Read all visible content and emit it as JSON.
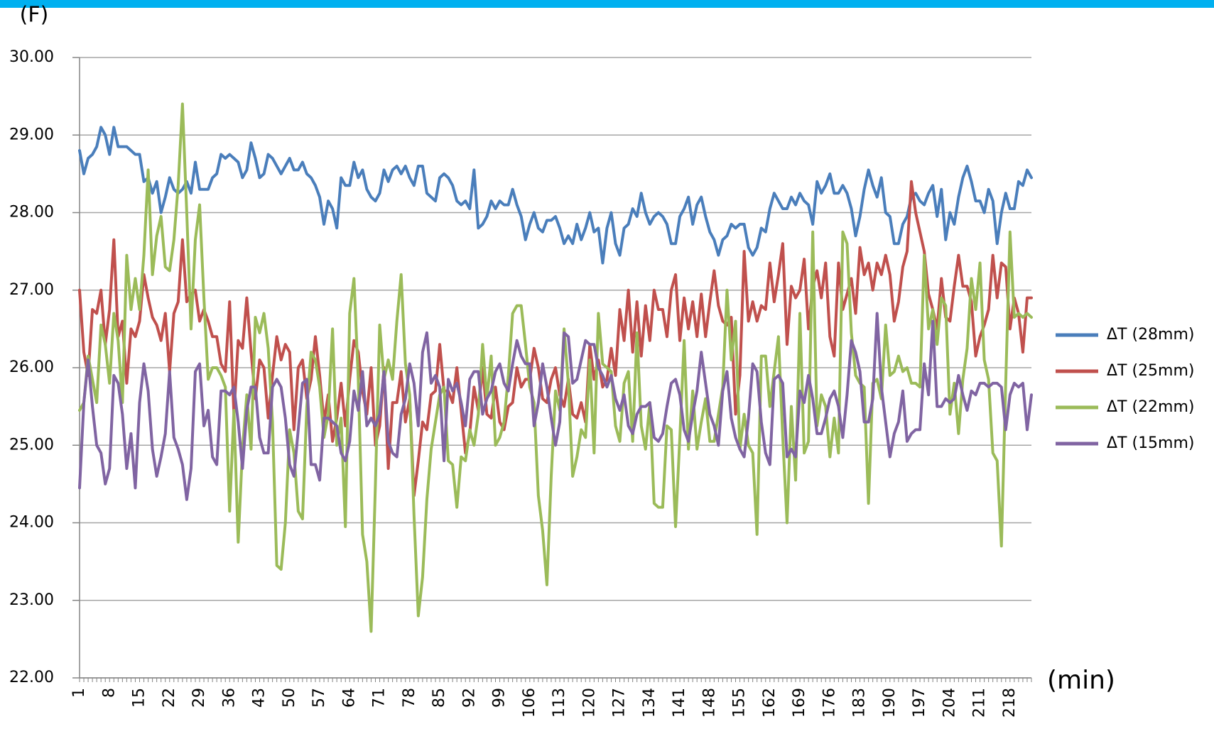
{
  "chart_data": {
    "type": "line",
    "y_unit_label": "(F)",
    "x_unit_label": "(min)",
    "ylim": [
      22,
      30
    ],
    "yticks": [
      {
        "value": 22,
        "label": "22.00"
      },
      {
        "value": 23,
        "label": "23.00"
      },
      {
        "value": 24,
        "label": "24.00"
      },
      {
        "value": 25,
        "label": "25.00"
      },
      {
        "value": 26,
        "label": "26.00"
      },
      {
        "value": 27,
        "label": "27.00"
      },
      {
        "value": 28,
        "label": "28.00"
      },
      {
        "value": 29,
        "label": "29.00"
      },
      {
        "value": 30,
        "label": "30.00"
      }
    ],
    "grid": true,
    "legend": "right",
    "categories": [
      "1",
      null,
      null,
      null,
      null,
      null,
      null,
      "8",
      null,
      null,
      null,
      null,
      null,
      null,
      "15",
      null,
      null,
      null,
      null,
      null,
      null,
      "22",
      null,
      null,
      null,
      null,
      null,
      null,
      "29",
      null,
      null,
      null,
      null,
      null,
      null,
      "36",
      null,
      null,
      null,
      null,
      null,
      null,
      "43",
      null,
      null,
      null,
      null,
      null,
      null,
      "50",
      null,
      null,
      null,
      null,
      null,
      null,
      "57",
      null,
      null,
      null,
      null,
      null,
      null,
      "64",
      null,
      null,
      null,
      null,
      null,
      null,
      "71",
      null,
      null,
      null,
      null,
      null,
      null,
      "78",
      null,
      null,
      null,
      null,
      null,
      null,
      "85",
      null,
      null,
      null,
      null,
      null,
      null,
      "92",
      null,
      null,
      null,
      null,
      null,
      null,
      "99",
      null,
      null,
      null,
      null,
      null,
      null,
      "106",
      null,
      null,
      null,
      null,
      null,
      null,
      "113",
      null,
      null,
      null,
      null,
      null,
      null,
      "120",
      null,
      null,
      null,
      null,
      null,
      null,
      "127",
      null,
      null,
      null,
      null,
      null,
      null,
      "134",
      null,
      null,
      null,
      null,
      null,
      null,
      "141",
      null,
      null,
      null,
      null,
      null,
      null,
      "148",
      null,
      null,
      null,
      null,
      null,
      null,
      "155",
      null,
      null,
      null,
      null,
      null,
      null,
      "162",
      null,
      null,
      null,
      null,
      null,
      null,
      "169",
      null,
      null,
      null,
      null,
      null,
      null,
      "176",
      null,
      null,
      null,
      null,
      null,
      null,
      "183",
      null,
      null,
      null,
      null,
      null,
      null,
      "190",
      null,
      null,
      null,
      null,
      null,
      null,
      "197",
      null,
      null,
      null,
      null,
      null,
      null,
      "204",
      null,
      null,
      null,
      null,
      null,
      null,
      "211",
      null,
      null,
      null,
      null,
      null,
      null,
      "218",
      null,
      null,
      null,
      null,
      null
    ],
    "series": [
      {
        "name": "ΔT (28mm)",
        "color": "#4a7ebb",
        "values": [
          28.8,
          28.5,
          28.7,
          28.75,
          28.85,
          29.1,
          29.0,
          28.75,
          29.1,
          28.85,
          28.85,
          28.85,
          28.8,
          28.75,
          28.75,
          28.4,
          28.45,
          28.25,
          28.4,
          28.0,
          28.2,
          28.45,
          28.3,
          28.25,
          28.3,
          28.4,
          28.25,
          28.65,
          28.3,
          28.3,
          28.3,
          28.45,
          28.5,
          28.75,
          28.7,
          28.75,
          28.7,
          28.65,
          28.45,
          28.55,
          28.9,
          28.7,
          28.45,
          28.5,
          28.75,
          28.7,
          28.6,
          28.5,
          28.6,
          28.7,
          28.55,
          28.55,
          28.65,
          28.5,
          28.45,
          28.35,
          28.2,
          27.85,
          28.15,
          28.05,
          27.8,
          28.45,
          28.35,
          28.35,
          28.65,
          28.45,
          28.55,
          28.3,
          28.2,
          28.15,
          28.25,
          28.55,
          28.4,
          28.55,
          28.6,
          28.5,
          28.6,
          28.45,
          28.35,
          28.6,
          28.6,
          28.25,
          28.2,
          28.15,
          28.45,
          28.5,
          28.45,
          28.35,
          28.15,
          28.1,
          28.15,
          28.05,
          28.55,
          27.8,
          27.85,
          27.95,
          28.15,
          28.05,
          28.15,
          28.1,
          28.1,
          28.3,
          28.1,
          27.95,
          27.65,
          27.85,
          28.0,
          27.8,
          27.75,
          27.9,
          27.9,
          27.95,
          27.8,
          27.6,
          27.7,
          27.6,
          27.85,
          27.65,
          27.8,
          28.0,
          27.75,
          27.8,
          27.35,
          27.8,
          28.0,
          27.6,
          27.45,
          27.8,
          27.85,
          28.05,
          27.95,
          28.25,
          28.0,
          27.85,
          27.95,
          28.0,
          27.95,
          27.85,
          27.6,
          27.6,
          27.95,
          28.05,
          28.2,
          27.85,
          28.1,
          28.2,
          27.95,
          27.75,
          27.65,
          27.45,
          27.65,
          27.7,
          27.85,
          27.8,
          27.85,
          27.85,
          27.55,
          27.45,
          27.55,
          27.8,
          27.75,
          28.05,
          28.25,
          28.15,
          28.05,
          28.05,
          28.2,
          28.1,
          28.25,
          28.15,
          28.1,
          27.85,
          28.4,
          28.25,
          28.35,
          28.5,
          28.25,
          28.25,
          28.35,
          28.25,
          28.05,
          27.7,
          27.95,
          28.3,
          28.55,
          28.35,
          28.2,
          28.45,
          28.0,
          27.95,
          27.6,
          27.6,
          27.85,
          27.95,
          28.2,
          28.25,
          28.15,
          28.1,
          28.25,
          28.35,
          27.95,
          28.3,
          27.65,
          28.0,
          27.85,
          28.2,
          28.45,
          28.6,
          28.4,
          28.15,
          28.15,
          28.0,
          28.3,
          28.15,
          27.6,
          28.0,
          28.25,
          28.05,
          28.05,
          28.4,
          28.35,
          28.55,
          28.45
        ]
      },
      {
        "name": "ΔT (25mm)",
        "color": "#c0504d",
        "values": [
          27.0,
          26.2,
          25.9,
          26.75,
          26.7,
          27.0,
          26.3,
          26.75,
          27.65,
          26.4,
          26.6,
          25.8,
          26.5,
          26.4,
          26.6,
          27.2,
          26.9,
          26.65,
          26.55,
          26.35,
          26.7,
          25.95,
          26.7,
          26.85,
          27.65,
          26.85,
          26.95,
          27.0,
          26.6,
          26.75,
          26.6,
          26.4,
          26.4,
          26.05,
          25.95,
          26.85,
          25.4,
          26.35,
          26.25,
          26.9,
          26.2,
          25.6,
          26.1,
          26.0,
          25.35,
          25.9,
          26.4,
          26.1,
          26.3,
          26.2,
          25.2,
          26.0,
          26.1,
          25.6,
          25.85,
          26.4,
          25.9,
          25.3,
          25.65,
          25.05,
          25.35,
          25.8,
          25.25,
          25.85,
          26.35,
          26.2,
          25.7,
          25.4,
          26.0,
          25.0,
          25.25,
          26.0,
          24.7,
          25.55,
          25.55,
          25.95,
          25.3,
          25.6,
          24.35,
          24.8,
          25.3,
          25.2,
          25.65,
          25.7,
          26.3,
          25.7,
          25.7,
          25.55,
          26.0,
          25.45,
          24.9,
          25.15,
          25.75,
          25.45,
          26.0,
          25.4,
          25.35,
          25.75,
          25.3,
          25.2,
          25.5,
          25.55,
          26.0,
          25.75,
          25.85,
          25.85,
          26.25,
          26.0,
          25.6,
          25.55,
          25.85,
          26.0,
          25.65,
          25.5,
          25.85,
          25.4,
          25.35,
          25.55,
          25.3,
          26.3,
          25.85,
          26.1,
          25.75,
          25.85,
          26.25,
          25.9,
          26.75,
          26.35,
          27.0,
          26.2,
          26.85,
          26.15,
          26.8,
          26.35,
          27.0,
          26.75,
          26.75,
          26.4,
          27.0,
          27.2,
          26.35,
          26.9,
          26.5,
          26.85,
          26.4,
          26.95,
          26.4,
          26.85,
          27.25,
          26.8,
          26.6,
          26.55,
          26.65,
          25.4,
          25.9,
          27.5,
          26.6,
          26.85,
          26.6,
          26.8,
          26.75,
          27.35,
          26.85,
          27.2,
          27.6,
          26.3,
          27.05,
          26.9,
          27.0,
          27.4,
          26.5,
          27.05,
          27.25,
          26.9,
          27.35,
          26.4,
          26.15,
          27.35,
          26.75,
          26.95,
          27.15,
          26.7,
          27.55,
          27.2,
          27.35,
          27.0,
          27.35,
          27.2,
          27.45,
          27.2,
          26.6,
          26.85,
          27.3,
          27.5,
          28.4,
          28.0,
          27.75,
          27.5,
          26.95,
          26.75,
          26.5,
          27.15,
          26.65,
          26.6,
          27.05,
          27.45,
          27.05,
          27.05,
          26.85,
          26.15,
          26.4,
          26.55,
          26.75,
          27.45,
          26.9,
          27.35,
          27.3,
          26.5,
          26.9,
          26.7,
          26.2,
          26.9,
          26.9
        ]
      },
      {
        "name": "ΔT (22mm)",
        "color": "#9bbb59",
        "values": [
          25.45,
          25.55,
          26.15,
          25.85,
          25.55,
          26.55,
          26.3,
          25.8,
          26.7,
          26.35,
          25.55,
          27.45,
          26.75,
          27.15,
          26.75,
          27.45,
          28.55,
          27.2,
          27.7,
          27.95,
          27.3,
          27.25,
          27.65,
          28.35,
          29.4,
          28.0,
          26.5,
          27.65,
          28.1,
          26.9,
          25.85,
          26.0,
          26.0,
          25.9,
          25.75,
          24.15,
          25.45,
          23.75,
          24.95,
          25.65,
          24.95,
          26.65,
          26.45,
          26.7,
          26.25,
          25.3,
          23.45,
          23.4,
          24.0,
          25.2,
          24.9,
          24.15,
          24.05,
          25.5,
          26.2,
          26.1,
          25.75,
          25.1,
          25.4,
          26.5,
          25.0,
          25.35,
          23.95,
          26.7,
          27.15,
          25.85,
          23.85,
          23.5,
          22.6,
          24.5,
          26.55,
          25.85,
          26.1,
          25.85,
          26.6,
          27.2,
          26.05,
          25.65,
          24.1,
          22.8,
          23.3,
          24.3,
          24.95,
          25.3,
          25.65,
          25.75,
          24.8,
          24.75,
          24.2,
          24.85,
          24.8,
          25.2,
          25.0,
          25.4,
          26.3,
          25.6,
          26.15,
          25.0,
          25.1,
          25.3,
          25.9,
          26.7,
          26.8,
          26.8,
          26.3,
          25.75,
          25.55,
          24.35,
          23.9,
          23.2,
          24.6,
          25.7,
          25.45,
          26.5,
          25.8,
          24.6,
          24.85,
          25.2,
          25.1,
          26.1,
          24.9,
          26.7,
          26.05,
          26.0,
          25.95,
          25.25,
          25.05,
          25.8,
          25.95,
          25.05,
          26.45,
          25.25,
          24.95,
          25.55,
          24.25,
          24.2,
          24.2,
          25.25,
          25.2,
          23.95,
          25.1,
          26.35,
          24.95,
          25.7,
          24.95,
          25.3,
          25.6,
          25.05,
          25.05,
          25.4,
          25.75,
          27.0,
          26.1,
          26.6,
          24.95,
          25.4,
          25.0,
          24.9,
          23.85,
          26.15,
          26.15,
          25.5,
          25.95,
          26.4,
          25.1,
          24.0,
          25.5,
          24.55,
          26.7,
          24.9,
          25.05,
          27.75,
          25.25,
          25.65,
          25.5,
          24.85,
          25.35,
          24.9,
          27.75,
          27.6,
          26.45,
          25.9,
          25.8,
          25.75,
          24.25,
          25.8,
          25.85,
          25.6,
          26.55,
          25.9,
          25.95,
          26.15,
          25.95,
          26.0,
          25.8,
          25.8,
          25.75,
          27.45,
          26.5,
          26.75,
          26.3,
          26.9,
          26.8,
          25.4,
          25.8,
          25.15,
          25.85,
          26.25,
          27.15,
          26.75,
          27.35,
          26.1,
          25.85,
          24.9,
          24.8,
          23.7,
          25.8,
          27.75,
          26.65,
          26.7,
          26.65,
          26.7,
          26.65
        ]
      },
      {
        "name": "ΔT (15mm)",
        "color": "#8064a2",
        "values": [
          24.45,
          25.55,
          26.1,
          25.5,
          25.0,
          24.9,
          24.5,
          24.7,
          25.9,
          25.8,
          25.4,
          24.7,
          25.15,
          24.45,
          25.55,
          26.05,
          25.7,
          24.95,
          24.6,
          24.85,
          25.15,
          25.95,
          25.1,
          24.95,
          24.75,
          24.3,
          24.7,
          25.95,
          26.05,
          25.25,
          25.45,
          24.85,
          24.75,
          25.7,
          25.7,
          25.65,
          25.75,
          25.3,
          24.7,
          25.45,
          25.75,
          25.75,
          25.1,
          24.9,
          24.9,
          25.75,
          25.85,
          25.75,
          25.35,
          24.75,
          24.6,
          25.2,
          25.8,
          25.85,
          24.75,
          24.75,
          24.55,
          25.35,
          25.35,
          25.3,
          25.25,
          24.9,
          24.8,
          25.05,
          25.7,
          25.45,
          25.95,
          25.25,
          25.35,
          25.25,
          25.4,
          25.95,
          25.05,
          24.9,
          24.85,
          25.4,
          25.6,
          26.05,
          25.8,
          25.25,
          26.2,
          26.45,
          25.8,
          25.9,
          25.75,
          24.8,
          25.85,
          25.7,
          25.8,
          25.55,
          25.25,
          25.85,
          25.95,
          25.95,
          25.4,
          25.6,
          25.7,
          25.95,
          26.05,
          25.8,
          25.7,
          26.05,
          26.35,
          26.15,
          26.05,
          26.05,
          25.25,
          25.55,
          26.05,
          25.75,
          25.35,
          25.0,
          25.3,
          26.45,
          26.4,
          25.8,
          25.85,
          26.1,
          26.35,
          26.3,
          26.3,
          26.0,
          25.9,
          25.75,
          25.9,
          25.6,
          25.45,
          25.65,
          25.25,
          25.15,
          25.4,
          25.5,
          25.5,
          25.55,
          25.1,
          25.05,
          25.15,
          25.5,
          25.8,
          25.85,
          25.65,
          25.2,
          25.05,
          25.4,
          25.7,
          26.2,
          25.8,
          25.4,
          25.25,
          25.0,
          25.7,
          25.95,
          25.35,
          25.1,
          24.95,
          24.85,
          25.35,
          26.05,
          25.95,
          25.3,
          24.9,
          24.75,
          25.85,
          25.9,
          25.8,
          24.85,
          24.95,
          24.85,
          25.7,
          25.55,
          25.9,
          25.6,
          25.15,
          25.15,
          25.35,
          25.6,
          25.7,
          25.5,
          25.1,
          25.65,
          26.35,
          26.2,
          25.95,
          25.3,
          25.3,
          25.6,
          26.7,
          25.75,
          25.3,
          24.85,
          25.15,
          25.3,
          25.7,
          25.05,
          25.15,
          25.2,
          25.2,
          26.05,
          25.65,
          26.6,
          25.5,
          25.5,
          25.6,
          25.55,
          25.6,
          25.9,
          25.65,
          25.45,
          25.7,
          25.65,
          25.8,
          25.8,
          25.75,
          25.8,
          25.8,
          25.75,
          25.2,
          25.65,
          25.8,
          25.75,
          25.8,
          25.2,
          25.65
        ]
      }
    ]
  }
}
